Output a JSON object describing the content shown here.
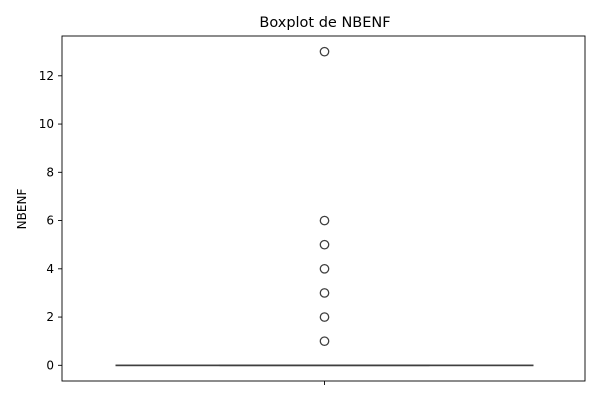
{
  "chart_data": {
    "type": "boxplot",
    "title": "Boxplot de NBENF",
    "xlabel": "",
    "ylabel": "NBENF",
    "ylim": [
      -0.65,
      13.65
    ],
    "yticks": [
      0,
      2,
      4,
      6,
      8,
      10,
      12
    ],
    "ytick_labels": [
      "0",
      "2",
      "4",
      "6",
      "8",
      "10",
      "12"
    ],
    "grid": false,
    "legend": "none",
    "box": {
      "q1": 0,
      "median": 0,
      "q3": 0,
      "whisker_low": 0,
      "whisker_high": 0
    },
    "outliers": [
      1,
      2,
      3,
      4,
      5,
      6,
      13
    ],
    "colors": {
      "box_line": "#3f3f3f",
      "outlier_edge": "#3f3f3f",
      "axis": "#000000"
    }
  }
}
